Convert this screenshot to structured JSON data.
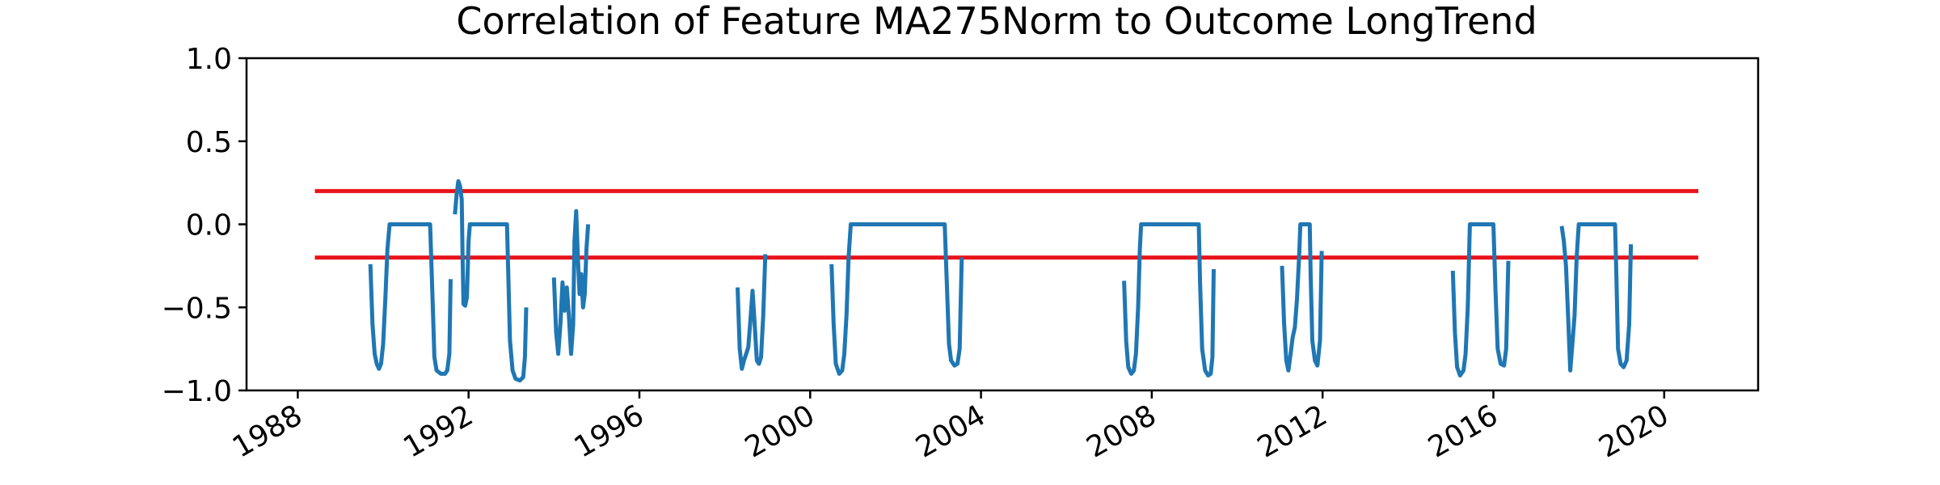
{
  "chart_data": {
    "type": "line",
    "title": "Correlation of Feature MA275Norm to Outcome LongTrend",
    "xlabel": "",
    "ylabel": "",
    "xlim": [
      1986.8,
      2022.2
    ],
    "ylim": [
      -1.0,
      1.0
    ],
    "x_ticks": [
      1988,
      1992,
      1996,
      2000,
      2004,
      2008,
      2012,
      2016,
      2020
    ],
    "x_tick_labels": [
      "1988",
      "1992",
      "1996",
      "2000",
      "2004",
      "2008",
      "2012",
      "2016",
      "2020"
    ],
    "y_ticks": [
      -1.0,
      -0.5,
      0.0,
      0.5,
      1.0
    ],
    "y_tick_labels": [
      "−1.0",
      "−0.5",
      "0.0",
      "0.5",
      "1.0"
    ],
    "grid": false,
    "colors": {
      "series": "#1f77b4",
      "reference": "#e8141b"
    },
    "reference_lines": [
      {
        "y": 0.2,
        "x_start": 1988.4,
        "x_end": 2020.8
      },
      {
        "y": -0.2,
        "x_start": 1988.4,
        "x_end": 2020.8
      }
    ],
    "series": [
      {
        "segments": [
          [
            [
              1989.7,
              -0.24
            ],
            [
              1989.75,
              -0.6
            ],
            [
              1989.8,
              -0.78
            ],
            [
              1989.85,
              -0.84
            ],
            [
              1989.9,
              -0.87
            ],
            [
              1989.95,
              -0.84
            ],
            [
              1990.0,
              -0.72
            ],
            [
              1990.05,
              -0.45
            ],
            [
              1990.1,
              -0.15
            ],
            [
              1990.15,
              0.0
            ],
            [
              1990.5,
              0.0
            ],
            [
              1991.0,
              0.0
            ],
            [
              1991.1,
              0.0
            ],
            [
              1991.15,
              -0.4
            ],
            [
              1991.2,
              -0.8
            ],
            [
              1991.25,
              -0.88
            ],
            [
              1991.35,
              -0.9
            ],
            [
              1991.45,
              -0.9
            ],
            [
              1991.5,
              -0.88
            ],
            [
              1991.55,
              -0.78
            ],
            [
              1991.58,
              -0.33
            ]
          ],
          [
            [
              1991.68,
              0.06
            ],
            [
              1991.72,
              0.18
            ],
            [
              1991.76,
              0.26
            ],
            [
              1991.8,
              0.23
            ],
            [
              1991.84,
              0.15
            ],
            [
              1991.86,
              -0.2
            ],
            [
              1991.88,
              -0.48
            ],
            [
              1991.92,
              -0.49
            ],
            [
              1991.96,
              -0.44
            ],
            [
              1992.0,
              -0.1
            ],
            [
              1992.03,
              0.0
            ],
            [
              1992.5,
              0.0
            ],
            [
              1992.9,
              0.0
            ],
            [
              1992.93,
              -0.3
            ],
            [
              1992.97,
              -0.7
            ],
            [
              1993.03,
              -0.88
            ],
            [
              1993.1,
              -0.93
            ],
            [
              1993.2,
              -0.94
            ],
            [
              1993.28,
              -0.92
            ],
            [
              1993.32,
              -0.8
            ],
            [
              1993.35,
              -0.5
            ]
          ],
          [
            [
              1994.0,
              -0.32
            ],
            [
              1994.05,
              -0.65
            ],
            [
              1994.1,
              -0.78
            ],
            [
              1994.15,
              -0.6
            ],
            [
              1994.2,
              -0.35
            ],
            [
              1994.25,
              -0.52
            ],
            [
              1994.3,
              -0.38
            ],
            [
              1994.35,
              -0.55
            ],
            [
              1994.4,
              -0.78
            ],
            [
              1994.45,
              -0.6
            ],
            [
              1994.48,
              -0.1
            ],
            [
              1994.52,
              0.08
            ],
            [
              1994.56,
              -0.2
            ],
            [
              1994.6,
              -0.42
            ],
            [
              1994.64,
              -0.3
            ],
            [
              1994.68,
              -0.5
            ],
            [
              1994.72,
              -0.42
            ],
            [
              1994.76,
              -0.15
            ],
            [
              1994.8,
              0.0
            ]
          ],
          [
            [
              1998.3,
              -0.38
            ],
            [
              1998.35,
              -0.75
            ],
            [
              1998.4,
              -0.87
            ],
            [
              1998.45,
              -0.82
            ],
            [
              1998.5,
              -0.78
            ],
            [
              1998.55,
              -0.74
            ],
            [
              1998.6,
              -0.58
            ],
            [
              1998.65,
              -0.4
            ],
            [
              1998.7,
              -0.6
            ],
            [
              1998.75,
              -0.82
            ],
            [
              1998.8,
              -0.84
            ],
            [
              1998.85,
              -0.8
            ],
            [
              1998.9,
              -0.55
            ],
            [
              1998.95,
              -0.18
            ]
          ],
          [
            [
              2000.5,
              -0.24
            ],
            [
              2000.55,
              -0.6
            ],
            [
              2000.6,
              -0.84
            ],
            [
              2000.68,
              -0.9
            ],
            [
              2000.75,
              -0.88
            ],
            [
              2000.8,
              -0.78
            ],
            [
              2000.85,
              -0.55
            ],
            [
              2000.9,
              -0.2
            ],
            [
              2000.95,
              0.0
            ],
            [
              2002.0,
              0.0
            ],
            [
              2003.15,
              0.0
            ],
            [
              2003.2,
              -0.35
            ],
            [
              2003.25,
              -0.72
            ],
            [
              2003.3,
              -0.82
            ],
            [
              2003.38,
              -0.85
            ],
            [
              2003.45,
              -0.84
            ],
            [
              2003.5,
              -0.75
            ],
            [
              2003.55,
              -0.2
            ]
          ],
          [
            [
              2007.35,
              -0.34
            ],
            [
              2007.4,
              -0.7
            ],
            [
              2007.45,
              -0.86
            ],
            [
              2007.52,
              -0.9
            ],
            [
              2007.58,
              -0.88
            ],
            [
              2007.63,
              -0.78
            ],
            [
              2007.68,
              -0.5
            ],
            [
              2007.72,
              -0.15
            ],
            [
              2007.75,
              0.0
            ],
            [
              2008.5,
              0.0
            ],
            [
              2009.1,
              0.0
            ],
            [
              2009.13,
              -0.35
            ],
            [
              2009.18,
              -0.75
            ],
            [
              2009.25,
              -0.88
            ],
            [
              2009.32,
              -0.91
            ],
            [
              2009.38,
              -0.9
            ],
            [
              2009.42,
              -0.8
            ],
            [
              2009.45,
              -0.27
            ]
          ],
          [
            [
              2011.05,
              -0.25
            ],
            [
              2011.1,
              -0.6
            ],
            [
              2011.15,
              -0.82
            ],
            [
              2011.2,
              -0.88
            ],
            [
              2011.25,
              -0.78
            ],
            [
              2011.3,
              -0.68
            ],
            [
              2011.35,
              -0.62
            ],
            [
              2011.4,
              -0.45
            ],
            [
              2011.45,
              -0.2
            ],
            [
              2011.48,
              0.0
            ],
            [
              2011.7,
              0.0
            ],
            [
              2011.72,
              -0.3
            ],
            [
              2011.76,
              -0.7
            ],
            [
              2011.82,
              -0.82
            ],
            [
              2011.88,
              -0.85
            ],
            [
              2011.94,
              -0.7
            ],
            [
              2011.98,
              -0.16
            ]
          ],
          [
            [
              2015.05,
              -0.28
            ],
            [
              2015.1,
              -0.65
            ],
            [
              2015.15,
              -0.86
            ],
            [
              2015.22,
              -0.91
            ],
            [
              2015.3,
              -0.88
            ],
            [
              2015.35,
              -0.78
            ],
            [
              2015.4,
              -0.5
            ],
            [
              2015.45,
              0.0
            ],
            [
              2016.0,
              0.0
            ],
            [
              2016.05,
              -0.4
            ],
            [
              2016.1,
              -0.75
            ],
            [
              2016.17,
              -0.84
            ],
            [
              2016.25,
              -0.85
            ],
            [
              2016.3,
              -0.75
            ],
            [
              2016.35,
              -0.22
            ]
          ],
          [
            [
              2017.6,
              -0.01
            ],
            [
              2017.65,
              -0.1
            ],
            [
              2017.7,
              -0.25
            ],
            [
              2017.75,
              -0.55
            ],
            [
              2017.8,
              -0.88
            ],
            [
              2017.85,
              -0.72
            ],
            [
              2017.9,
              -0.55
            ],
            [
              2017.95,
              -0.2
            ],
            [
              2018.0,
              0.0
            ],
            [
              2018.6,
              0.0
            ],
            [
              2018.85,
              0.0
            ],
            [
              2018.88,
              -0.3
            ],
            [
              2018.92,
              -0.75
            ],
            [
              2018.98,
              -0.84
            ],
            [
              2019.05,
              -0.86
            ],
            [
              2019.12,
              -0.82
            ],
            [
              2019.18,
              -0.6
            ],
            [
              2019.22,
              -0.12
            ]
          ]
        ]
      }
    ]
  }
}
